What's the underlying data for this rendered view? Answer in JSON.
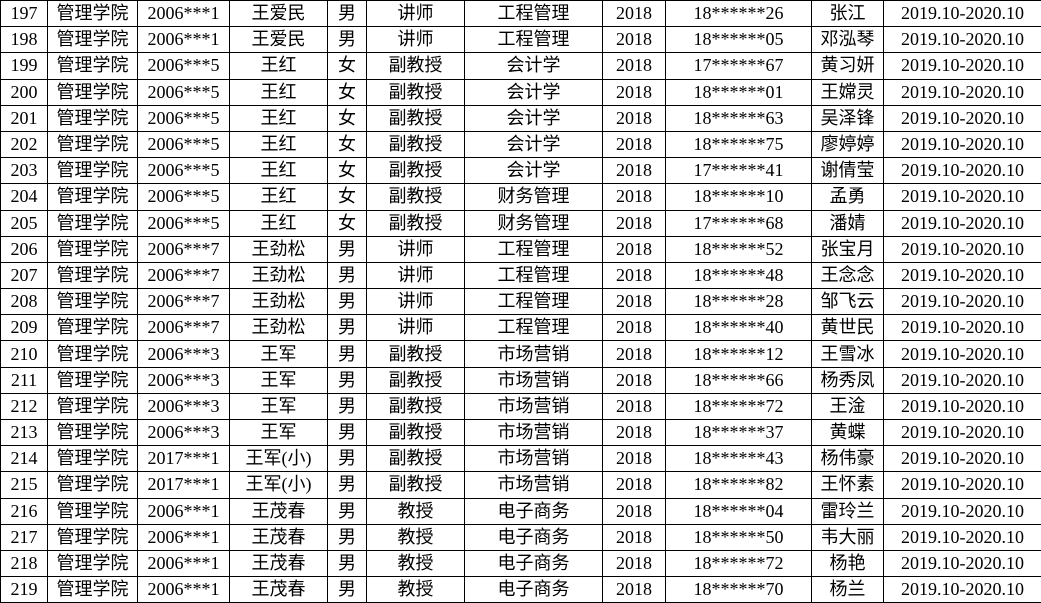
{
  "table": {
    "rows": [
      [
        "197",
        "管理学院",
        "2006***1",
        "王爱民",
        "男",
        "讲师",
        "工程管理",
        "2018",
        "18******26",
        "张江",
        "2019.10-2020.10"
      ],
      [
        "198",
        "管理学院",
        "2006***1",
        "王爱民",
        "男",
        "讲师",
        "工程管理",
        "2018",
        "18******05",
        "邓泓琴",
        "2019.10-2020.10"
      ],
      [
        "199",
        "管理学院",
        "2006***5",
        "王红",
        "女",
        "副教授",
        "会计学",
        "2018",
        "17******67",
        "黄习妍",
        "2019.10-2020.10"
      ],
      [
        "200",
        "管理学院",
        "2006***5",
        "王红",
        "女",
        "副教授",
        "会计学",
        "2018",
        "18******01",
        "王嫦灵",
        "2019.10-2020.10"
      ],
      [
        "201",
        "管理学院",
        "2006***5",
        "王红",
        "女",
        "副教授",
        "会计学",
        "2018",
        "18******63",
        "吴泽锋",
        "2019.10-2020.10"
      ],
      [
        "202",
        "管理学院",
        "2006***5",
        "王红",
        "女",
        "副教授",
        "会计学",
        "2018",
        "18******75",
        "廖婷婷",
        "2019.10-2020.10"
      ],
      [
        "203",
        "管理学院",
        "2006***5",
        "王红",
        "女",
        "副教授",
        "会计学",
        "2018",
        "17******41",
        "谢倩莹",
        "2019.10-2020.10"
      ],
      [
        "204",
        "管理学院",
        "2006***5",
        "王红",
        "女",
        "副教授",
        "财务管理",
        "2018",
        "18******10",
        "孟勇",
        "2019.10-2020.10"
      ],
      [
        "205",
        "管理学院",
        "2006***5",
        "王红",
        "女",
        "副教授",
        "财务管理",
        "2018",
        "17******68",
        "潘婧",
        "2019.10-2020.10"
      ],
      [
        "206",
        "管理学院",
        "2006***7",
        "王劲松",
        "男",
        "讲师",
        "工程管理",
        "2018",
        "18******52",
        "张宝月",
        "2019.10-2020.10"
      ],
      [
        "207",
        "管理学院",
        "2006***7",
        "王劲松",
        "男",
        "讲师",
        "工程管理",
        "2018",
        "18******48",
        "王念念",
        "2019.10-2020.10"
      ],
      [
        "208",
        "管理学院",
        "2006***7",
        "王劲松",
        "男",
        "讲师",
        "工程管理",
        "2018",
        "18******28",
        "邹飞云",
        "2019.10-2020.10"
      ],
      [
        "209",
        "管理学院",
        "2006***7",
        "王劲松",
        "男",
        "讲师",
        "工程管理",
        "2018",
        "18******40",
        "黄世民",
        "2019.10-2020.10"
      ],
      [
        "210",
        "管理学院",
        "2006***3",
        "王军",
        "男",
        "副教授",
        "市场营销",
        "2018",
        "18******12",
        "王雪冰",
        "2019.10-2020.10"
      ],
      [
        "211",
        "管理学院",
        "2006***3",
        "王军",
        "男",
        "副教授",
        "市场营销",
        "2018",
        "18******66",
        "杨秀凤",
        "2019.10-2020.10"
      ],
      [
        "212",
        "管理学院",
        "2006***3",
        "王军",
        "男",
        "副教授",
        "市场营销",
        "2018",
        "18******72",
        "王淦",
        "2019.10-2020.10"
      ],
      [
        "213",
        "管理学院",
        "2006***3",
        "王军",
        "男",
        "副教授",
        "市场营销",
        "2018",
        "18******37",
        "黄蝶",
        "2019.10-2020.10"
      ],
      [
        "214",
        "管理学院",
        "2017***1",
        "王军(小)",
        "男",
        "副教授",
        "市场营销",
        "2018",
        "18******43",
        "杨伟豪",
        "2019.10-2020.10"
      ],
      [
        "215",
        "管理学院",
        "2017***1",
        "王军(小)",
        "男",
        "副教授",
        "市场营销",
        "2018",
        "18******82",
        "王怀素",
        "2019.10-2020.10"
      ],
      [
        "216",
        "管理学院",
        "2006***1",
        "王茂春",
        "男",
        "教授",
        "电子商务",
        "2018",
        "18******04",
        "雷玲兰",
        "2019.10-2020.10"
      ],
      [
        "217",
        "管理学院",
        "2006***1",
        "王茂春",
        "男",
        "教授",
        "电子商务",
        "2018",
        "18******50",
        "韦大丽",
        "2019.10-2020.10"
      ],
      [
        "218",
        "管理学院",
        "2006***1",
        "王茂春",
        "男",
        "教授",
        "电子商务",
        "2018",
        "18******72",
        "杨艳",
        "2019.10-2020.10"
      ],
      [
        "219",
        "管理学院",
        "2006***1",
        "王茂春",
        "男",
        "教授",
        "电子商务",
        "2018",
        "18******70",
        "杨兰",
        "2019.10-2020.10"
      ]
    ]
  }
}
